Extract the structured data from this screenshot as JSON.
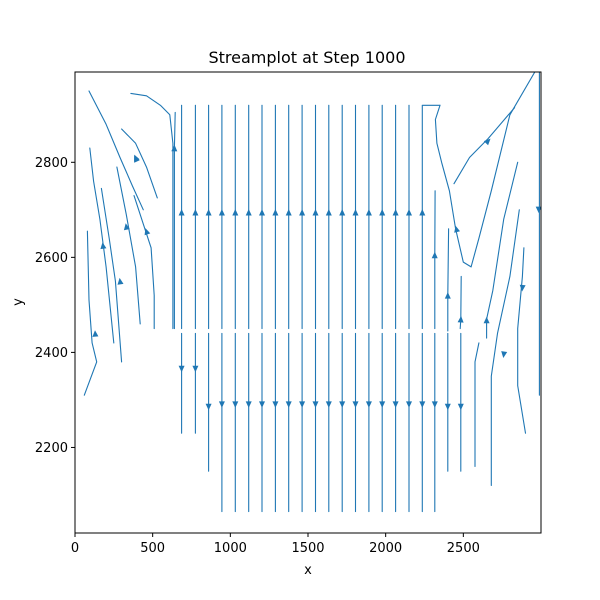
{
  "chart_data": {
    "type": "streamplot",
    "title": "Streamplot at Step 1000",
    "xlabel": "x",
    "ylabel": "y",
    "xlim": [
      0,
      3000
    ],
    "ylim": [
      2020,
      2990
    ],
    "xticks": [
      0,
      500,
      1000,
      1500,
      2000,
      2500
    ],
    "xtick_labels": [
      "0",
      "500",
      "1000",
      "1500",
      "2000",
      "2500"
    ],
    "yticks": [
      2200,
      2400,
      2600,
      2800
    ],
    "ytick_labels": [
      "2200",
      "2400",
      "2600",
      "2800"
    ],
    "grid": false,
    "color": "#1f77b4",
    "streamlines": [
      {
        "points": [
          [
            686,
            2920
          ],
          [
            686,
            2450
          ]
        ],
        "arrow": [
          686,
          2695
        ],
        "dir": "up"
      },
      {
        "points": [
          [
            775,
            2920
          ],
          [
            775,
            2450
          ]
        ],
        "arrow": [
          775,
          2695
        ],
        "dir": "up"
      },
      {
        "points": [
          [
            860,
            2920
          ],
          [
            860,
            2450
          ]
        ],
        "arrow": [
          860,
          2695
        ],
        "dir": "up"
      },
      {
        "points": [
          [
            946,
            2920
          ],
          [
            946,
            2450
          ]
        ],
        "arrow": [
          946,
          2695
        ],
        "dir": "up"
      },
      {
        "points": [
          [
            1032,
            2920
          ],
          [
            1032,
            2450
          ]
        ],
        "arrow": [
          1032,
          2695
        ],
        "dir": "up"
      },
      {
        "points": [
          [
            1118,
            2920
          ],
          [
            1118,
            2450
          ]
        ],
        "arrow": [
          1118,
          2695
        ],
        "dir": "up"
      },
      {
        "points": [
          [
            1204,
            2920
          ],
          [
            1204,
            2450
          ]
        ],
        "arrow": [
          1204,
          2695
        ],
        "dir": "up"
      },
      {
        "points": [
          [
            1290,
            2920
          ],
          [
            1290,
            2450
          ]
        ],
        "arrow": [
          1290,
          2695
        ],
        "dir": "up"
      },
      {
        "points": [
          [
            1376,
            2920
          ],
          [
            1376,
            2450
          ]
        ],
        "arrow": [
          1376,
          2695
        ],
        "dir": "up"
      },
      {
        "points": [
          [
            1462,
            2920
          ],
          [
            1462,
            2450
          ]
        ],
        "arrow": [
          1462,
          2695
        ],
        "dir": "up"
      },
      {
        "points": [
          [
            1548,
            2920
          ],
          [
            1548,
            2450
          ]
        ],
        "arrow": [
          1548,
          2695
        ],
        "dir": "up"
      },
      {
        "points": [
          [
            1634,
            2920
          ],
          [
            1634,
            2450
          ]
        ],
        "arrow": [
          1634,
          2695
        ],
        "dir": "up"
      },
      {
        "points": [
          [
            1720,
            2920
          ],
          [
            1720,
            2450
          ]
        ],
        "arrow": [
          1720,
          2695
        ],
        "dir": "up"
      },
      {
        "points": [
          [
            1806,
            2920
          ],
          [
            1806,
            2450
          ]
        ],
        "arrow": [
          1806,
          2695
        ],
        "dir": "up"
      },
      {
        "points": [
          [
            1892,
            2920
          ],
          [
            1892,
            2450
          ]
        ],
        "arrow": [
          1892,
          2695
        ],
        "dir": "up"
      },
      {
        "points": [
          [
            1978,
            2920
          ],
          [
            1978,
            2450
          ]
        ],
        "arrow": [
          1978,
          2695
        ],
        "dir": "up"
      },
      {
        "points": [
          [
            2064,
            2920
          ],
          [
            2064,
            2450
          ]
        ],
        "arrow": [
          2064,
          2695
        ],
        "dir": "up"
      },
      {
        "points": [
          [
            2150,
            2920
          ],
          [
            2150,
            2450
          ]
        ],
        "arrow": [
          2150,
          2695
        ],
        "dir": "up"
      },
      {
        "points": [
          [
            2236,
            2920
          ],
          [
            2236,
            2450
          ]
        ],
        "arrow": [
          2236,
          2695
        ],
        "dir": "up"
      },
      {
        "points": [
          [
            686,
            2440
          ],
          [
            686,
            2230
          ]
        ],
        "arrow": [
          686,
          2365
        ],
        "dir": "down"
      },
      {
        "points": [
          [
            775,
            2440
          ],
          [
            775,
            2230
          ]
        ],
        "arrow": [
          775,
          2365
        ],
        "dir": "down"
      },
      {
        "points": [
          [
            860,
            2440
          ],
          [
            860,
            2150
          ]
        ],
        "arrow": [
          860,
          2285
        ],
        "dir": "down"
      },
      {
        "points": [
          [
            946,
            2440
          ],
          [
            946,
            2065
          ]
        ],
        "arrow": [
          946,
          2290
        ],
        "dir": "down"
      },
      {
        "points": [
          [
            1032,
            2440
          ],
          [
            1032,
            2065
          ]
        ],
        "arrow": [
          1032,
          2290
        ],
        "dir": "down"
      },
      {
        "points": [
          [
            1118,
            2440
          ],
          [
            1118,
            2065
          ]
        ],
        "arrow": [
          1118,
          2290
        ],
        "dir": "down"
      },
      {
        "points": [
          [
            1204,
            2440
          ],
          [
            1204,
            2065
          ]
        ],
        "arrow": [
          1204,
          2290
        ],
        "dir": "down"
      },
      {
        "points": [
          [
            1290,
            2440
          ],
          [
            1290,
            2065
          ]
        ],
        "arrow": [
          1290,
          2290
        ],
        "dir": "down"
      },
      {
        "points": [
          [
            1376,
            2440
          ],
          [
            1376,
            2065
          ]
        ],
        "arrow": [
          1376,
          2290
        ],
        "dir": "down"
      },
      {
        "points": [
          [
            1462,
            2440
          ],
          [
            1462,
            2065
          ]
        ],
        "arrow": [
          1462,
          2290
        ],
        "dir": "down"
      },
      {
        "points": [
          [
            1548,
            2440
          ],
          [
            1548,
            2065
          ]
        ],
        "arrow": [
          1548,
          2290
        ],
        "dir": "down"
      },
      {
        "points": [
          [
            1634,
            2440
          ],
          [
            1634,
            2065
          ]
        ],
        "arrow": [
          1634,
          2290
        ],
        "dir": "down"
      },
      {
        "points": [
          [
            1720,
            2440
          ],
          [
            1720,
            2065
          ]
        ],
        "arrow": [
          1720,
          2290
        ],
        "dir": "down"
      },
      {
        "points": [
          [
            1806,
            2440
          ],
          [
            1806,
            2065
          ]
        ],
        "arrow": [
          1806,
          2290
        ],
        "dir": "down"
      },
      {
        "points": [
          [
            1892,
            2440
          ],
          [
            1892,
            2065
          ]
        ],
        "arrow": [
          1892,
          2290
        ],
        "dir": "down"
      },
      {
        "points": [
          [
            1978,
            2440
          ],
          [
            1978,
            2065
          ]
        ],
        "arrow": [
          1978,
          2290
        ],
        "dir": "down"
      },
      {
        "points": [
          [
            2064,
            2440
          ],
          [
            2064,
            2065
          ]
        ],
        "arrow": [
          2064,
          2290
        ],
        "dir": "down"
      },
      {
        "points": [
          [
            2150,
            2440
          ],
          [
            2150,
            2065
          ]
        ],
        "arrow": [
          2150,
          2290
        ],
        "dir": "down"
      },
      {
        "points": [
          [
            2236,
            2440
          ],
          [
            2236,
            2065
          ]
        ],
        "arrow": [
          2236,
          2290
        ],
        "dir": "down"
      },
      {
        "points": [
          [
            2316,
            2440
          ],
          [
            2316,
            2065
          ]
        ],
        "arrow": [
          2316,
          2290
        ],
        "dir": "down"
      },
      {
        "points": [
          [
            2400,
            2440
          ],
          [
            2400,
            2150
          ]
        ],
        "arrow": [
          2400,
          2285
        ],
        "dir": "down"
      },
      {
        "points": [
          [
            2484,
            2440
          ],
          [
            2484,
            2150
          ]
        ],
        "arrow": [
          2484,
          2285
        ],
        "dir": "down"
      },
      {
        "points": [
          [
            2316,
            2450
          ],
          [
            2316,
            2605
          ],
          [
            2318,
            2740
          ]
        ],
        "arrow": [
          2316,
          2605
        ],
        "dir": "up"
      },
      {
        "points": [
          [
            2400,
            2445
          ],
          [
            2400,
            2520
          ],
          [
            2405,
            2660
          ]
        ],
        "arrow": [
          2400,
          2520
        ],
        "dir": "up"
      },
      {
        "points": [
          [
            2480,
            2450
          ],
          [
            2484,
            2470
          ],
          [
            2486,
            2560
          ]
        ],
        "arrow": [
          2484,
          2470
        ],
        "dir": "up"
      },
      {
        "points": [
          [
            640,
            2450
          ],
          [
            640,
            2830
          ],
          [
            645,
            2905
          ]
        ],
        "arrow": [
          640,
          2830
        ],
        "dir": "up"
      },
      {
        "points": [
          [
            2240,
            2920
          ],
          [
            2300,
            2920
          ],
          [
            2350,
            2920
          ]
        ],
        "arrow": null,
        "dir": null
      },
      {
        "points": [
          [
            2350,
            2920
          ],
          [
            2320,
            2890
          ],
          [
            2330,
            2840
          ],
          [
            2360,
            2800
          ],
          [
            2410,
            2740
          ],
          [
            2450,
            2660
          ],
          [
            2500,
            2590
          ],
          [
            2550,
            2580
          ],
          [
            2600,
            2640
          ],
          [
            2680,
            2740
          ],
          [
            2800,
            2900
          ],
          [
            2960,
            2990
          ]
        ],
        "arrow": [
          2455,
          2660
        ],
        "dir": "up"
      },
      {
        "points": [
          [
            2440,
            2755
          ],
          [
            2540,
            2810
          ],
          [
            2660,
            2850
          ],
          [
            2830,
            2915
          ]
        ],
        "arrow": [
          2660,
          2845
        ],
        "dir": "up"
      },
      {
        "points": [
          [
            90,
            2950
          ],
          [
            200,
            2880
          ],
          [
            290,
            2810
          ],
          [
            370,
            2750
          ],
          [
            440,
            2700
          ]
        ],
        "arrow": [
          390,
          2810
        ],
        "dir": "up"
      },
      {
        "points": [
          [
            530,
            2725
          ],
          [
            460,
            2790
          ],
          [
            390,
            2840
          ],
          [
            300,
            2870
          ]
        ],
        "arrow": [
          390,
          2808
        ],
        "dir": "up"
      },
      {
        "points": [
          [
            360,
            2945
          ],
          [
            460,
            2940
          ],
          [
            550,
            2920
          ],
          [
            610,
            2900
          ],
          [
            630,
            2840
          ],
          [
            630,
            2450
          ]
        ],
        "arrow": null,
        "dir": null
      },
      {
        "points": [
          [
            95,
            2830
          ],
          [
            120,
            2760
          ],
          [
            160,
            2680
          ],
          [
            200,
            2580
          ],
          [
            250,
            2420
          ]
        ],
        "arrow": [
          180,
          2625
        ],
        "dir": "up"
      },
      {
        "points": [
          [
            170,
            2745
          ],
          [
            220,
            2640
          ],
          [
            260,
            2550
          ],
          [
            300,
            2380
          ]
        ],
        "arrow": [
          290,
          2550
        ],
        "dir": "up"
      },
      {
        "points": [
          [
            270,
            2790
          ],
          [
            330,
            2690
          ],
          [
            390,
            2580
          ],
          [
            420,
            2460
          ]
        ],
        "arrow": [
          330,
          2665
        ],
        "dir": "up"
      },
      {
        "points": [
          [
            380,
            2730
          ],
          [
            440,
            2670
          ],
          [
            490,
            2620
          ],
          [
            510,
            2520
          ],
          [
            510,
            2450
          ]
        ],
        "arrow": [
          460,
          2655
        ],
        "dir": "up"
      },
      {
        "points": [
          [
            80,
            2655
          ],
          [
            90,
            2510
          ],
          [
            110,
            2420
          ],
          [
            140,
            2380
          ],
          [
            60,
            2310
          ]
        ],
        "arrow": [
          130,
          2440
        ],
        "dir": "up"
      },
      {
        "points": [
          [
            2650,
            2430
          ],
          [
            2650,
            2470
          ],
          [
            2690,
            2530
          ],
          [
            2760,
            2680
          ],
          [
            2850,
            2800
          ]
        ],
        "arrow": [
          2650,
          2468
        ],
        "dir": "up"
      },
      {
        "points": [
          [
            2680,
            2120
          ],
          [
            2680,
            2350
          ],
          [
            2720,
            2440
          ],
          [
            2800,
            2560
          ],
          [
            2860,
            2700
          ]
        ],
        "arrow": [
          2760,
          2395
        ],
        "dir": "down"
      },
      {
        "points": [
          [
            2900,
            2230
          ],
          [
            2850,
            2330
          ],
          [
            2850,
            2450
          ],
          [
            2880,
            2560
          ],
          [
            2890,
            2620
          ]
        ],
        "arrow": [
          2880,
          2535
        ],
        "dir": "down"
      },
      {
        "points": [
          [
            2990,
            2310
          ],
          [
            2990,
            2700
          ],
          [
            2990,
            2990
          ]
        ],
        "arrow": [
          2985,
          2700
        ],
        "dir": "down"
      },
      {
        "points": [
          [
            2575,
            2160
          ],
          [
            2575,
            2380
          ],
          [
            2600,
            2420
          ]
        ],
        "arrow": null,
        "dir": null
      }
    ]
  }
}
